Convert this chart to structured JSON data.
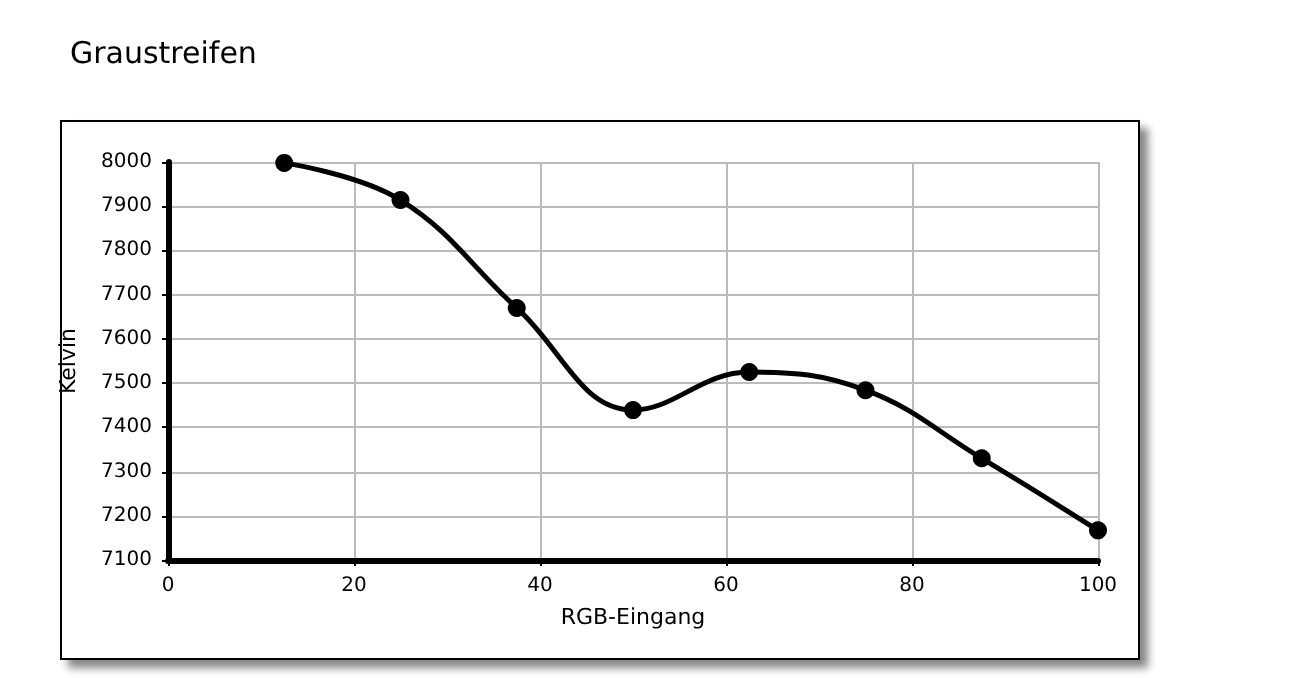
{
  "chart_data": {
    "type": "line",
    "title": "Graustreifen",
    "xlabel": "RGB-Eingang",
    "ylabel": "Kelvin",
    "x": [
      12.5,
      25,
      37.5,
      50,
      62.5,
      75,
      87.5,
      100
    ],
    "series": [
      {
        "color": "#000000",
        "values": [
          7998,
          7914,
          7670,
          7439,
          7525,
          7484,
          7330,
          7167
        ]
      }
    ],
    "xlim": [
      0,
      100
    ],
    "xticks": [
      0,
      20,
      40,
      60,
      80,
      100
    ],
    "ylim": [
      7100,
      8000
    ],
    "yticks": [
      7100,
      7200,
      7300,
      7400,
      7500,
      7600,
      7700,
      7800,
      7900,
      8000
    ],
    "grid": true,
    "marker": "circle",
    "line_style": "solid"
  }
}
